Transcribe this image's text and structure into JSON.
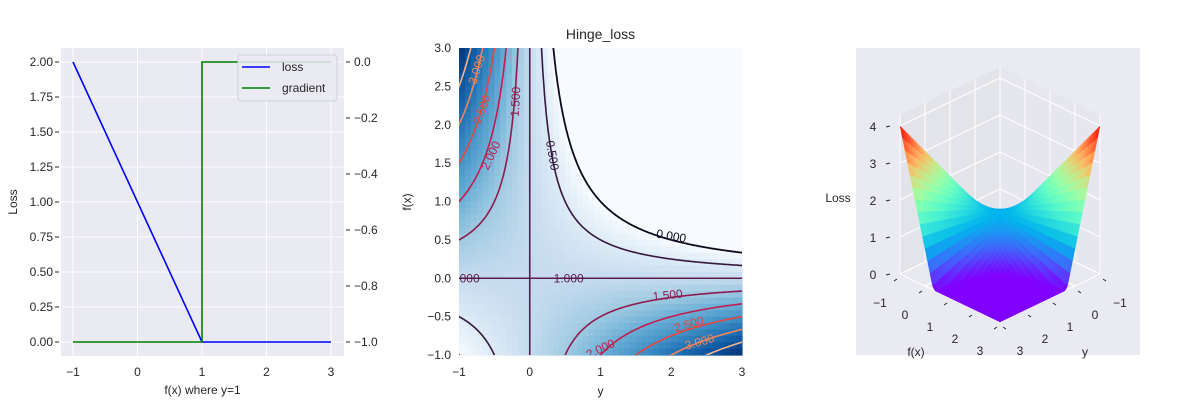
{
  "chart_data": [
    {
      "type": "line",
      "title": "",
      "xlabel": "f(x) where y=1",
      "ylabel": "Loss",
      "xlim": [
        -1.2,
        3.2
      ],
      "ylim": [
        -0.1,
        2.1
      ],
      "y2lim": [
        -1.05,
        0.05
      ],
      "grid": true,
      "legend": "top-right",
      "xticks": [
        -1,
        0,
        1,
        2,
        3
      ],
      "xtick_labels": [
        "−1",
        "0",
        "1",
        "2",
        "3"
      ],
      "yticks": [
        0,
        0.25,
        0.5,
        0.75,
        1.0,
        1.25,
        1.5,
        1.75,
        2.0
      ],
      "ytick_labels": [
        "0.00",
        "0.25",
        "0.50",
        "0.75",
        "1.00",
        "1.25",
        "1.50",
        "1.75",
        "2.00"
      ],
      "y2ticks": [
        -1.0,
        -0.8,
        -0.6,
        -0.4,
        -0.2,
        0.0
      ],
      "y2tick_labels": [
        "−1.0",
        "−0.8",
        "−0.6",
        "−0.4",
        "−0.2",
        "0.0"
      ],
      "series": [
        {
          "name": "loss",
          "color": "#0000ff",
          "axis": "left",
          "x": [
            -1,
            1,
            3
          ],
          "y": [
            2,
            0,
            0
          ]
        },
        {
          "name": "gradient",
          "color": "#008000",
          "axis": "right",
          "x": [
            -1,
            1,
            1,
            3
          ],
          "y": [
            -1,
            -1,
            0,
            0
          ]
        }
      ]
    },
    {
      "type": "heatmap",
      "title": "Hinge_loss",
      "xlabel": "y",
      "ylabel": "f(x)",
      "xlim": [
        -1,
        3
      ],
      "ylim": [
        -1,
        3
      ],
      "colormap": "Blues",
      "xticks": [
        -1,
        0,
        1,
        2,
        3
      ],
      "xtick_labels": [
        "−1",
        "0",
        "1",
        "2",
        "3"
      ],
      "yticks": [
        -1,
        -0.5,
        0,
        0.5,
        1,
        1.5,
        2,
        2.5,
        3
      ],
      "ytick_labels": [
        "−1.0",
        "−0.5",
        "0.0",
        "0.5",
        "1.0",
        "1.5",
        "2.0",
        "2.5",
        "3.0"
      ],
      "contour_levels": [
        0,
        0.5,
        1.0,
        1.5,
        2.0,
        2.5,
        3.0,
        3.5
      ],
      "contour_colors": [
        "#0d0a1e",
        "#35183f",
        "#5c1a4d",
        "#8f1a50",
        "#c21d4b",
        "#e8453f",
        "#f3845a",
        "#f6b48e"
      ],
      "contour_labels": [
        "3.000",
        "2.500",
        "2.000",
        "1.500",
        "0.500",
        "0.000",
        "1.000",
        "000",
        "1.500",
        "2.500",
        "3.000",
        "2.000"
      ]
    },
    {
      "type": "surface",
      "xlabel": "f(x)",
      "ylabel": "y",
      "zlabel": "Loss",
      "xlim": [
        -1,
        3
      ],
      "ylim": [
        -1,
        3
      ],
      "zlim": [
        0,
        4
      ],
      "colormap": "rainbow",
      "xtick_labels": [
        "−1",
        "0",
        "1",
        "2",
        "3"
      ],
      "ytick_labels": [
        "−1",
        "0",
        "1",
        "2",
        "3"
      ],
      "ztick_labels": [
        "0",
        "1",
        "2",
        "3",
        "4"
      ]
    }
  ]
}
